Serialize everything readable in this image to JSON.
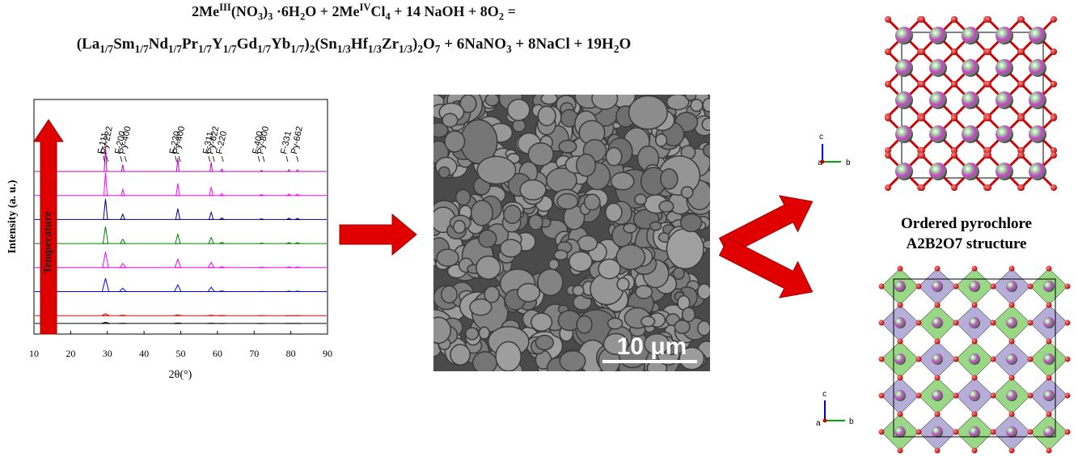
{
  "equation": {
    "line1": [
      {
        "text": "2Me",
        "kind": "normal"
      },
      {
        "text": "III",
        "kind": "sup"
      },
      {
        "text": "(NO",
        "kind": "normal"
      },
      {
        "text": "3",
        "kind": "sub"
      },
      {
        "text": ")",
        "kind": "normal"
      },
      {
        "text": "3",
        "kind": "sub"
      },
      {
        "text": " ·6H",
        "kind": "normal"
      },
      {
        "text": "2",
        "kind": "sub"
      },
      {
        "text": "O + 2Me",
        "kind": "normal"
      },
      {
        "text": "IV",
        "kind": "sup"
      },
      {
        "text": "Cl",
        "kind": "normal"
      },
      {
        "text": "4",
        "kind": "sub"
      },
      {
        "text": " + 14 NaOH + 8O",
        "kind": "normal"
      },
      {
        "text": "2",
        "kind": "sub"
      },
      {
        "text": " =",
        "kind": "normal"
      }
    ],
    "line2": [
      {
        "text": "(La",
        "kind": "normal"
      },
      {
        "text": "1/7",
        "kind": "sub"
      },
      {
        "text": "Sm",
        "kind": "normal"
      },
      {
        "text": "1/7",
        "kind": "sub"
      },
      {
        "text": "Nd",
        "kind": "normal"
      },
      {
        "text": "1/7",
        "kind": "sub"
      },
      {
        "text": "Pr",
        "kind": "normal"
      },
      {
        "text": "1/7",
        "kind": "sub"
      },
      {
        "text": "Y",
        "kind": "normal"
      },
      {
        "text": "1/7",
        "kind": "sub"
      },
      {
        "text": "Gd",
        "kind": "normal"
      },
      {
        "text": "1/7",
        "kind": "sub"
      },
      {
        "text": "Yb",
        "kind": "normal"
      },
      {
        "text": "1/7",
        "kind": "sub"
      },
      {
        "text": ")",
        "kind": "normal"
      },
      {
        "text": "2",
        "kind": "sub"
      },
      {
        "text": "(Sn",
        "kind": "normal"
      },
      {
        "text": "1/3",
        "kind": "sub"
      },
      {
        "text": "Hf",
        "kind": "normal"
      },
      {
        "text": "1/3",
        "kind": "sub"
      },
      {
        "text": "Zr",
        "kind": "normal"
      },
      {
        "text": "1/3",
        "kind": "sub"
      },
      {
        "text": ")",
        "kind": "normal"
      },
      {
        "text": "2",
        "kind": "sub"
      },
      {
        "text": "O",
        "kind": "normal"
      },
      {
        "text": "7",
        "kind": "sub"
      },
      {
        "text": " + 6NaNO",
        "kind": "normal"
      },
      {
        "text": "3",
        "kind": "sub"
      },
      {
        "text": " + 8NaCl + 19H",
        "kind": "normal"
      },
      {
        "text": "2",
        "kind": "sub"
      },
      {
        "text": "O",
        "kind": "normal"
      }
    ]
  },
  "xrd": {
    "xlabel": "2θ(°)",
    "ylabel": "Intensity (a. u.)",
    "arrow_label": "Temperature",
    "xlim": [
      10,
      90
    ],
    "xticks": [
      10,
      20,
      30,
      40,
      50,
      60,
      70,
      80,
      90
    ],
    "peak_positions": [
      29.5,
      34.2,
      49.2,
      58.3,
      61.2,
      72,
      79.5,
      81.8
    ],
    "traces": [
      {
        "color": "#c000c0",
        "values": [
          100,
          28,
          55,
          38,
          10,
          5,
          8,
          7
        ]
      },
      {
        "color": "#ff00ff",
        "values": [
          95,
          25,
          50,
          35,
          8,
          4,
          7,
          6
        ]
      },
      {
        "color": "#000080",
        "values": [
          85,
          22,
          45,
          30,
          7,
          3,
          6,
          5
        ]
      },
      {
        "color": "#008000",
        "values": [
          70,
          18,
          38,
          25,
          5,
          2,
          4,
          4
        ]
      },
      {
        "color": "#ff00ff",
        "values": [
          65,
          17,
          35,
          22,
          4,
          2,
          3,
          3
        ]
      },
      {
        "color": "#0000ff",
        "values": [
          55,
          14,
          28,
          18,
          3,
          1,
          2,
          2
        ]
      },
      {
        "color": "#ff0000",
        "values": [
          8,
          2,
          3,
          2,
          1,
          0,
          0,
          0
        ]
      },
      {
        "color": "#000000",
        "values": [
          5,
          1,
          2,
          1,
          0,
          0,
          0,
          0
        ]
      }
    ],
    "peak_labels": [
      {
        "label": "F-111",
        "x": 29.3
      },
      {
        "label": "Py-222",
        "x": 30.2
      },
      {
        "label": "F-200",
        "x": 34
      },
      {
        "label": "Py-400",
        "x": 35.2
      },
      {
        "label": "F-220",
        "x": 48.9
      },
      {
        "label": "Py-400",
        "x": 49.9
      },
      {
        "label": "F-311",
        "x": 58
      },
      {
        "label": "Py-622",
        "x": 59.2
      },
      {
        "label": "F-220",
        "x": 61.6
      },
      {
        "label": "F-400",
        "x": 71.5
      },
      {
        "label": "Py-800",
        "x": 72.8
      },
      {
        "label": "F-331",
        "x": 79.2
      },
      {
        "label": "Py-662",
        "x": 82
      }
    ]
  },
  "sem": {
    "scale_bar": "10 μm"
  },
  "structure": {
    "title_line1": "Ordered pyrochlore",
    "title_line2": "A2B2O7 structure",
    "top_axis_labels": [
      "c",
      "a",
      "b"
    ],
    "bottom_axis_labels": [
      "c",
      "a",
      "b"
    ]
  }
}
